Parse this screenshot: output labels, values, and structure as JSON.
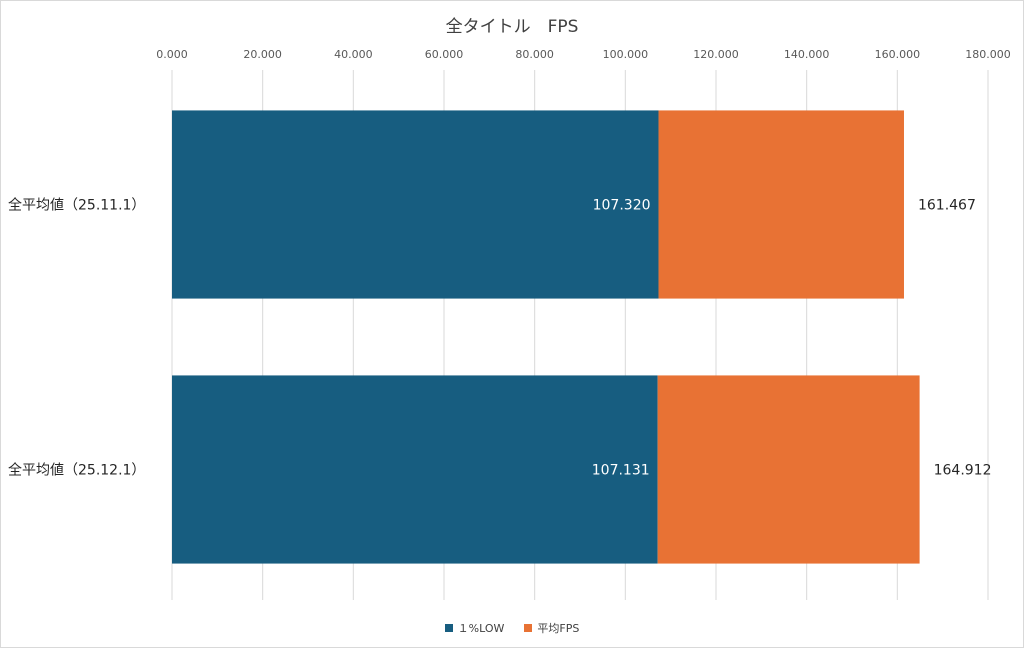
{
  "chart_data": {
    "type": "bar",
    "orientation": "horizontal",
    "stacked": true,
    "title": "全タイトル　FPS",
    "categories": [
      "全平均値（25.11.1）",
      "全平均値（25.12.1）"
    ],
    "series": [
      {
        "name": "１%LOW",
        "color": "#175d80",
        "values": [
          107.32,
          107.131
        ],
        "labels": [
          "107.320",
          "107.131"
        ]
      },
      {
        "name": "平均FPS",
        "color": "#e87234",
        "values": [
          54.147,
          57.781
        ],
        "labels": [
          "161.467",
          "164.912"
        ]
      }
    ],
    "xlim": [
      0,
      180
    ],
    "xticks": [
      "0.000",
      "20.000",
      "40.000",
      "60.000",
      "80.000",
      "100.000",
      "120.000",
      "140.000",
      "160.000",
      "180.000"
    ],
    "grid": true,
    "legend_position": "bottom"
  }
}
